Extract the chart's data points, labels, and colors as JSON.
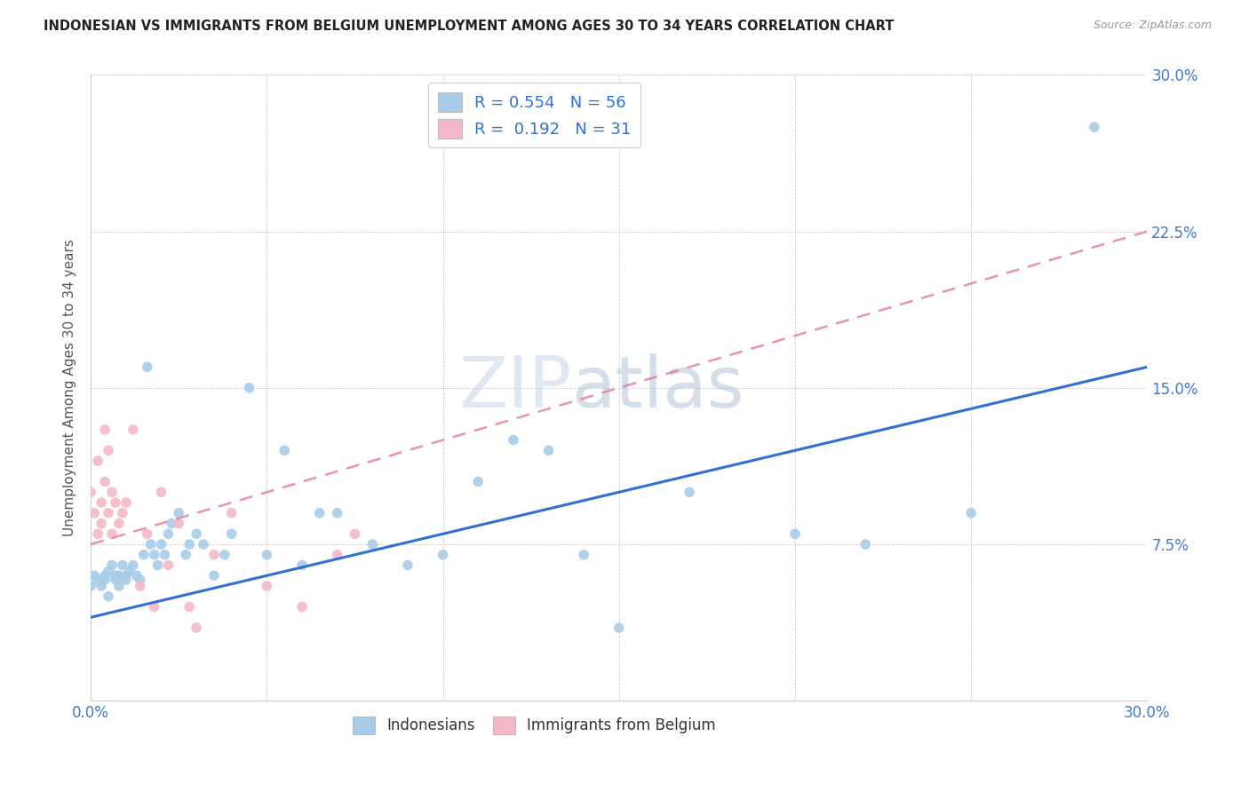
{
  "title": "INDONESIAN VS IMMIGRANTS FROM BELGIUM UNEMPLOYMENT AMONG AGES 30 TO 34 YEARS CORRELATION CHART",
  "source": "Source: ZipAtlas.com",
  "ylabel": "Unemployment Among Ages 30 to 34 years",
  "xlim": [
    0.0,
    0.3
  ],
  "ylim": [
    0.0,
    0.3
  ],
  "xticks": [
    0.0,
    0.05,
    0.1,
    0.15,
    0.2,
    0.25,
    0.3
  ],
  "xtick_labels": [
    "0.0%",
    "",
    "",
    "",
    "",
    "",
    "30.0%"
  ],
  "yticks": [
    0.0,
    0.075,
    0.15,
    0.225,
    0.3
  ],
  "ytick_labels": [
    "",
    "7.5%",
    "15.0%",
    "22.5%",
    "30.0%"
  ],
  "legend_label1": "Indonesians",
  "legend_label2": "Immigrants from Belgium",
  "R1": 0.554,
  "N1": 56,
  "R2": 0.192,
  "N2": 31,
  "color1": "#a8cce8",
  "color2": "#f4b8c8",
  "line_color1": "#3070d0",
  "line_color2": "#e07090",
  "background_color": "#ffffff",
  "indonesian_x": [
    0.0,
    0.001,
    0.002,
    0.003,
    0.004,
    0.004,
    0.005,
    0.005,
    0.006,
    0.007,
    0.007,
    0.008,
    0.008,
    0.009,
    0.01,
    0.01,
    0.011,
    0.012,
    0.013,
    0.014,
    0.015,
    0.016,
    0.017,
    0.018,
    0.019,
    0.02,
    0.021,
    0.022,
    0.023,
    0.025,
    0.027,
    0.028,
    0.03,
    0.032,
    0.035,
    0.038,
    0.04,
    0.045,
    0.05,
    0.055,
    0.06,
    0.065,
    0.07,
    0.08,
    0.09,
    0.1,
    0.11,
    0.12,
    0.13,
    0.14,
    0.15,
    0.17,
    0.2,
    0.22,
    0.25,
    0.285
  ],
  "indonesian_y": [
    0.055,
    0.06,
    0.058,
    0.055,
    0.06,
    0.058,
    0.062,
    0.05,
    0.065,
    0.06,
    0.058,
    0.06,
    0.055,
    0.065,
    0.06,
    0.058,
    0.062,
    0.065,
    0.06,
    0.058,
    0.07,
    0.16,
    0.075,
    0.07,
    0.065,
    0.075,
    0.07,
    0.08,
    0.085,
    0.09,
    0.07,
    0.075,
    0.08,
    0.075,
    0.06,
    0.07,
    0.08,
    0.15,
    0.07,
    0.12,
    0.065,
    0.09,
    0.09,
    0.075,
    0.065,
    0.07,
    0.105,
    0.125,
    0.12,
    0.07,
    0.035,
    0.1,
    0.08,
    0.075,
    0.09,
    0.275
  ],
  "belgium_x": [
    0.0,
    0.001,
    0.002,
    0.002,
    0.003,
    0.003,
    0.004,
    0.004,
    0.005,
    0.005,
    0.006,
    0.006,
    0.007,
    0.008,
    0.009,
    0.01,
    0.012,
    0.014,
    0.016,
    0.018,
    0.02,
    0.022,
    0.025,
    0.028,
    0.03,
    0.035,
    0.04,
    0.05,
    0.06,
    0.07,
    0.075
  ],
  "belgium_y": [
    0.1,
    0.09,
    0.115,
    0.08,
    0.095,
    0.085,
    0.13,
    0.105,
    0.09,
    0.12,
    0.08,
    0.1,
    0.095,
    0.085,
    0.09,
    0.095,
    0.13,
    0.055,
    0.08,
    0.045,
    0.1,
    0.065,
    0.085,
    0.045,
    0.035,
    0.07,
    0.09,
    0.055,
    0.045,
    0.07,
    0.08
  ],
  "trend1_x0": 0.0,
  "trend1_x1": 0.3,
  "trend1_y0": 0.04,
  "trend1_y1": 0.16,
  "trend2_x0": 0.0,
  "trend2_x1": 0.3,
  "trend2_y0": 0.075,
  "trend2_y1": 0.225
}
